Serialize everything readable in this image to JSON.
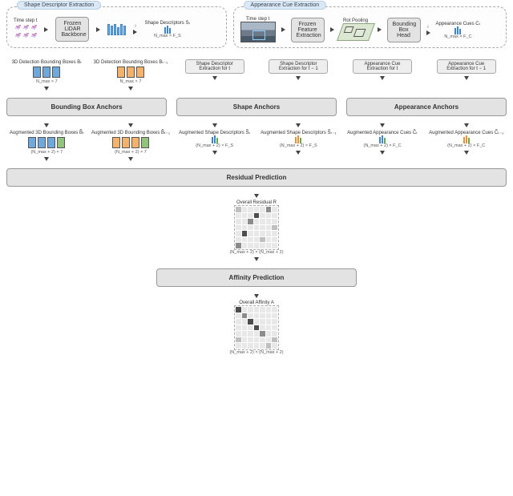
{
  "panels": {
    "shape": {
      "title": "Shape Descriptor Extraction"
    },
    "appearance": {
      "title": "Appearance Cue Extraction"
    }
  },
  "shape_panel": {
    "timestep": "Time step t",
    "lidar_box": "Frozen\nLiDAR\nBackbone",
    "out_label": "Shape Descriptors Sₜ",
    "dim": "N_max × F_S",
    "index": "i"
  },
  "appearance_panel": {
    "timestep": "Time step t",
    "feat_box": "Frozen\nFeature\nExtraction",
    "roi_label": "RoI Pooling",
    "bb_head": "Bounding\nBox Head",
    "out_label": "Appearance Cues Cₜ",
    "dim": "N_max × F_C",
    "index": "i"
  },
  "inputs": {
    "bb_t": {
      "title": "3D Detection Bounding Boxes Bₜ",
      "dim": "N_max × 7"
    },
    "bb_tm1": {
      "title": "3D Detection Bounding Boxes Bₜ₋₁",
      "dim": "N_max × 7"
    },
    "sd_t": {
      "title": "Shape Descriptor\nExtraction for t"
    },
    "sd_tm1": {
      "title": "Shape Descriptor\nExtraction for t − 1"
    },
    "ac_t": {
      "title": "Appearance Cue\nExtraction for t"
    },
    "ac_tm1": {
      "title": "Appearance Cue\nExtraction for t − 1"
    }
  },
  "anchors": {
    "bb": "Bounding Box Anchors",
    "shape": "Shape Anchors",
    "app": "Appearance Anchors"
  },
  "augmented": {
    "bb_t": {
      "title": "Augmented 3D Bounding Boxes B̃ₜ",
      "dim": "(N_max + 2) × 7"
    },
    "bb_tm1": {
      "title": "Augmented 3D Bounding Boxes B̃ₜ₋₁",
      "dim": "(N_max + 2) × 7"
    },
    "sd_t": {
      "title": "Augmented Shape Descriptors S̃ₜ",
      "dim": "(N_max + 2) × F_S"
    },
    "sd_tm1": {
      "title": "Augmented Shape Descriptors S̃ₜ₋₁",
      "dim": "(N_max + 2) × F_S"
    },
    "ac_t": {
      "title": "Augmented Appearance Cues C̃ₜ",
      "dim": "(N_max + 2) × F_C"
    },
    "ac_tm1": {
      "title": "Augmented Appearance Cues C̃ₜ₋₁",
      "dim": "(N_max + 2) × F_C"
    }
  },
  "residual": {
    "box": "Residual Prediction",
    "out_title": "Overall Residual R",
    "out_dim": "(N_max + 2) × (N_max + 2)"
  },
  "affinity": {
    "box": "Affinity Prediction",
    "out_title": "Overall Affinity A",
    "out_dim": "(N_max + 2) × (N_max + 2)"
  },
  "colors": {
    "blue": "#6fa8dc",
    "blue_border": "#3d85c6",
    "orange": "#f6b26b",
    "orange_border": "#e69138",
    "green": "#93c47d",
    "green_border": "#6aa84f",
    "panel_tab_bg": "#dce8f5",
    "box_bg": "#e3e3e3",
    "box_border": "#999999"
  },
  "matrix_residual": {
    "size": 7,
    "shades": [
      [
        1,
        0,
        0,
        0,
        0,
        2,
        0
      ],
      [
        0,
        0,
        0,
        3,
        0,
        0,
        0
      ],
      [
        0,
        0,
        2,
        0,
        0,
        0,
        0
      ],
      [
        0,
        0,
        0,
        0,
        0,
        0,
        1
      ],
      [
        0,
        3,
        0,
        0,
        0,
        0,
        0
      ],
      [
        0,
        0,
        0,
        0,
        1,
        0,
        0
      ],
      [
        2,
        0,
        0,
        0,
        0,
        0,
        0
      ]
    ],
    "palette": [
      "#e8e8e8",
      "#bfbfbf",
      "#8c8c8c",
      "#4d4d4d"
    ]
  },
  "matrix_affinity": {
    "size": 7,
    "shades": [
      [
        3,
        0,
        0,
        0,
        0,
        0,
        0
      ],
      [
        0,
        2,
        0,
        0,
        0,
        0,
        0
      ],
      [
        0,
        0,
        3,
        0,
        0,
        0,
        0
      ],
      [
        0,
        0,
        0,
        3,
        0,
        0,
        0
      ],
      [
        0,
        0,
        0,
        0,
        2,
        0,
        0
      ],
      [
        1,
        0,
        0,
        0,
        0,
        0,
        1
      ],
      [
        0,
        0,
        0,
        0,
        0,
        1,
        0
      ]
    ],
    "palette": [
      "#e8e8e8",
      "#bfbfbf",
      "#8c8c8c",
      "#4d4d4d"
    ]
  }
}
